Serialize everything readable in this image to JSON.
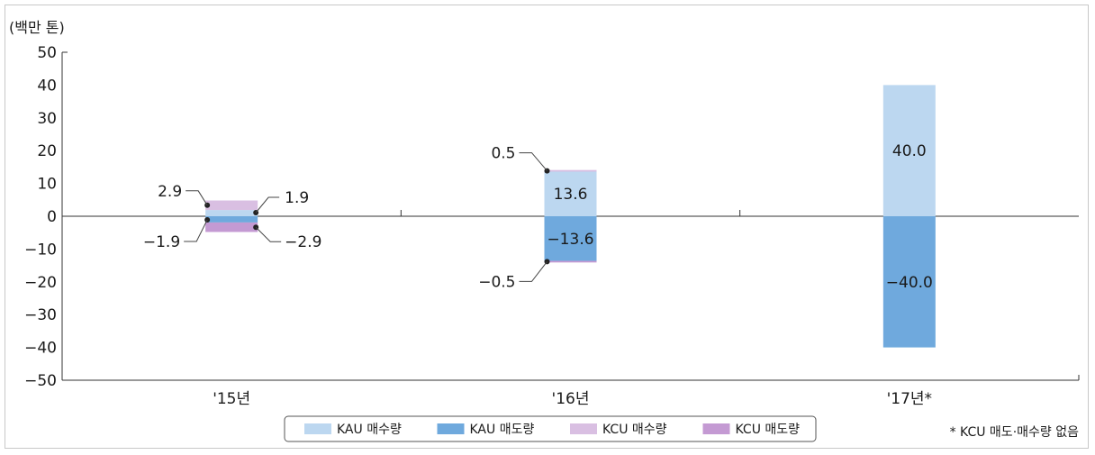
{
  "chart_data": {
    "type": "bar",
    "unit_label": "(백만 톤)",
    "categories": [
      "'15년",
      "'16년",
      "'17년*"
    ],
    "ylim": [
      -50,
      50
    ],
    "yticks": [
      50,
      40,
      30,
      20,
      10,
      0,
      -10,
      -20,
      -30,
      -40,
      -50
    ],
    "ytick_labels": [
      "50",
      "40",
      "30",
      "20",
      "10",
      "0",
      "-10",
      "-20",
      "-30",
      "-40",
      "-50"
    ],
    "series": [
      {
        "name": "KAU 매수량",
        "color": "#bcd7f0",
        "values": [
          1.9,
          13.6,
          40.0
        ]
      },
      {
        "name": "KAU 매도량",
        "color": "#6fa9dd",
        "values": [
          -1.9,
          -13.6,
          -40.0
        ]
      },
      {
        "name": "KCU 매수량",
        "color": "#d9bfe2",
        "values": [
          2.9,
          0.5,
          0
        ]
      },
      {
        "name": "KCU 매도량",
        "color": "#c49ad3",
        "values": [
          -2.9,
          -0.5,
          0
        ]
      }
    ],
    "data_labels": [
      {
        "text": "2.9",
        "category": "'15년",
        "series": "KCU 매수량"
      },
      {
        "text": "1.9",
        "category": "'15년",
        "series": "KAU 매수량"
      },
      {
        "text": "-1.9",
        "category": "'15년",
        "series": "KAU 매도량"
      },
      {
        "text": "-2.9",
        "category": "'15년",
        "series": "KCU 매도량"
      },
      {
        "text": "0.5",
        "category": "'16년",
        "series": "KCU 매수량"
      },
      {
        "text": "13.6",
        "category": "'16년",
        "series": "KAU 매수량"
      },
      {
        "text": "-13.6",
        "category": "'16년",
        "series": "KAU 매도량"
      },
      {
        "text": "-0.5",
        "category": "'16년",
        "series": "KCU 매도량"
      },
      {
        "text": "40.0",
        "category": "'17년*",
        "series": "KAU 매수량"
      },
      {
        "text": "-40.0",
        "category": "'17년*",
        "series": "KAU 매도량"
      }
    ],
    "footnote": "* KCU 매도·매수량 없음",
    "legend_position": "bottom-center",
    "grid": false
  }
}
